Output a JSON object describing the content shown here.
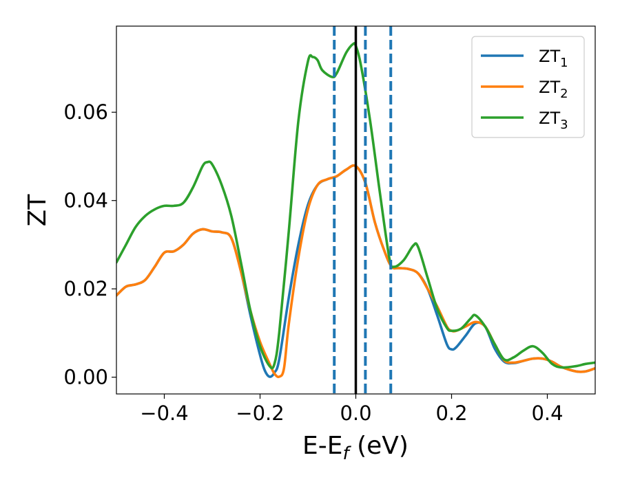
{
  "chart_data": {
    "type": "line",
    "xlabel": "E-E",
    "xlabel_sub": "f",
    "xlabel_unit": " (eV)",
    "ylabel": "ZT",
    "xlim": [
      -0.5,
      0.5
    ],
    "ylim": [
      -0.0038,
      0.0795
    ],
    "grid": false,
    "legend_position": "top-right",
    "x_ticks": [
      -0.4,
      -0.2,
      0.0,
      0.2,
      0.4
    ],
    "x_tick_labels": [
      "−0.4",
      "−0.2",
      "0.0",
      "0.2",
      "0.4"
    ],
    "y_ticks": [
      0.0,
      0.02,
      0.04,
      0.06
    ],
    "y_tick_labels": [
      "0.00",
      "0.02",
      "0.04",
      "0.06"
    ],
    "vertical_lines": [
      {
        "x": -0.045,
        "style": "dashed",
        "color": "#1f77b4"
      },
      {
        "x": 0.0,
        "style": "solid",
        "color": "#000000"
      },
      {
        "x": 0.02,
        "style": "dashed",
        "color": "#1f77b4"
      },
      {
        "x": 0.073,
        "style": "dashed",
        "color": "#1f77b4"
      }
    ],
    "series": [
      {
        "name": "ZT",
        "name_sub": "1",
        "color": "#1f77b4",
        "points": [
          [
            -0.5,
            0.0185
          ],
          [
            -0.48,
            0.0205
          ],
          [
            -0.46,
            0.021
          ],
          [
            -0.44,
            0.022
          ],
          [
            -0.42,
            0.025
          ],
          [
            -0.4,
            0.0282
          ],
          [
            -0.38,
            0.0285
          ],
          [
            -0.36,
            0.03
          ],
          [
            -0.34,
            0.0325
          ],
          [
            -0.32,
            0.0335
          ],
          [
            -0.3,
            0.033
          ],
          [
            -0.28,
            0.0328
          ],
          [
            -0.26,
            0.0315
          ],
          [
            -0.24,
            0.024
          ],
          [
            -0.22,
            0.014
          ],
          [
            -0.2,
            0.005
          ],
          [
            -0.19,
            0.0015
          ],
          [
            -0.18,
            0.0001
          ],
          [
            -0.17,
            0.001
          ],
          [
            -0.16,
            0.004
          ],
          [
            -0.14,
            0.018
          ],
          [
            -0.12,
            0.03
          ],
          [
            -0.1,
            0.039
          ],
          [
            -0.08,
            0.0435
          ],
          [
            -0.06,
            0.0448
          ],
          [
            -0.04,
            0.0455
          ],
          [
            -0.02,
            0.047
          ],
          [
            0.0,
            0.0478
          ],
          [
            0.02,
            0.044
          ],
          [
            0.04,
            0.035
          ],
          [
            0.06,
            0.0285
          ],
          [
            0.075,
            0.025
          ],
          [
            0.09,
            0.0247
          ],
          [
            0.11,
            0.0245
          ],
          [
            0.13,
            0.0235
          ],
          [
            0.15,
            0.02
          ],
          [
            0.17,
            0.014
          ],
          [
            0.19,
            0.0075
          ],
          [
            0.2,
            0.0063
          ],
          [
            0.21,
            0.0068
          ],
          [
            0.23,
            0.0095
          ],
          [
            0.25,
            0.0122
          ],
          [
            0.27,
            0.0115
          ],
          [
            0.29,
            0.0065
          ],
          [
            0.31,
            0.0035
          ],
          [
            0.33,
            0.0032
          ],
          [
            0.35,
            0.0037
          ],
          [
            0.37,
            0.0042
          ],
          [
            0.39,
            0.0042
          ],
          [
            0.41,
            0.0035
          ],
          [
            0.43,
            0.0023
          ],
          [
            0.46,
            0.0013
          ],
          [
            0.48,
            0.0013
          ],
          [
            0.5,
            0.002
          ]
        ]
      },
      {
        "name": "ZT",
        "name_sub": "2",
        "color": "#ff7f0e",
        "points": [
          [
            -0.5,
            0.0185
          ],
          [
            -0.48,
            0.0205
          ],
          [
            -0.46,
            0.021
          ],
          [
            -0.44,
            0.022
          ],
          [
            -0.42,
            0.025
          ],
          [
            -0.4,
            0.0282
          ],
          [
            -0.38,
            0.0285
          ],
          [
            -0.36,
            0.03
          ],
          [
            -0.34,
            0.0325
          ],
          [
            -0.32,
            0.0335
          ],
          [
            -0.3,
            0.033
          ],
          [
            -0.28,
            0.0328
          ],
          [
            -0.26,
            0.0315
          ],
          [
            -0.24,
            0.024
          ],
          [
            -0.22,
            0.015
          ],
          [
            -0.2,
            0.008
          ],
          [
            -0.18,
            0.003
          ],
          [
            -0.17,
            0.0008
          ],
          [
            -0.16,
            0.0001
          ],
          [
            -0.15,
            0.002
          ],
          [
            -0.14,
            0.012
          ],
          [
            -0.12,
            0.027
          ],
          [
            -0.1,
            0.038
          ],
          [
            -0.08,
            0.0435
          ],
          [
            -0.06,
            0.0448
          ],
          [
            -0.04,
            0.0455
          ],
          [
            -0.02,
            0.047
          ],
          [
            0.0,
            0.0478
          ],
          [
            0.02,
            0.044
          ],
          [
            0.04,
            0.035
          ],
          [
            0.06,
            0.0285
          ],
          [
            0.075,
            0.025
          ],
          [
            0.09,
            0.0247
          ],
          [
            0.11,
            0.0245
          ],
          [
            0.13,
            0.0235
          ],
          [
            0.15,
            0.02
          ],
          [
            0.17,
            0.016
          ],
          [
            0.19,
            0.0115
          ],
          [
            0.2,
            0.0105
          ],
          [
            0.21,
            0.0105
          ],
          [
            0.23,
            0.0115
          ],
          [
            0.25,
            0.0125
          ],
          [
            0.27,
            0.0115
          ],
          [
            0.29,
            0.0075
          ],
          [
            0.31,
            0.0038
          ],
          [
            0.33,
            0.0033
          ],
          [
            0.35,
            0.0037
          ],
          [
            0.37,
            0.0042
          ],
          [
            0.39,
            0.0042
          ],
          [
            0.41,
            0.0035
          ],
          [
            0.43,
            0.0023
          ],
          [
            0.46,
            0.0013
          ],
          [
            0.48,
            0.0013
          ],
          [
            0.5,
            0.002
          ]
        ]
      },
      {
        "name": "ZT",
        "name_sub": "3",
        "color": "#2ca02c",
        "points": [
          [
            -0.5,
            0.026
          ],
          [
            -0.48,
            0.03
          ],
          [
            -0.46,
            0.034
          ],
          [
            -0.44,
            0.0365
          ],
          [
            -0.42,
            0.038
          ],
          [
            -0.4,
            0.0388
          ],
          [
            -0.38,
            0.0388
          ],
          [
            -0.36,
            0.0395
          ],
          [
            -0.34,
            0.043
          ],
          [
            -0.32,
            0.0478
          ],
          [
            -0.31,
            0.0487
          ],
          [
            -0.3,
            0.0482
          ],
          [
            -0.28,
            0.0435
          ],
          [
            -0.26,
            0.0365
          ],
          [
            -0.24,
            0.026
          ],
          [
            -0.22,
            0.015
          ],
          [
            -0.2,
            0.007
          ],
          [
            -0.18,
            0.0025
          ],
          [
            -0.17,
            0.003
          ],
          [
            -0.16,
            0.01
          ],
          [
            -0.14,
            0.033
          ],
          [
            -0.12,
            0.058
          ],
          [
            -0.1,
            0.0715
          ],
          [
            -0.09,
            0.0725
          ],
          [
            -0.08,
            0.0718
          ],
          [
            -0.07,
            0.0695
          ],
          [
            -0.05,
            0.068
          ],
          [
            -0.04,
            0.0688
          ],
          [
            -0.02,
            0.0735
          ],
          [
            -0.005,
            0.0755
          ],
          [
            0.0,
            0.075
          ],
          [
            0.01,
            0.071
          ],
          [
            0.03,
            0.058
          ],
          [
            0.05,
            0.042
          ],
          [
            0.07,
            0.027
          ],
          [
            0.08,
            0.025
          ],
          [
            0.1,
            0.0265
          ],
          [
            0.12,
            0.0298
          ],
          [
            0.13,
            0.0295
          ],
          [
            0.15,
            0.0225
          ],
          [
            0.17,
            0.0155
          ],
          [
            0.19,
            0.0112
          ],
          [
            0.2,
            0.0105
          ],
          [
            0.22,
            0.011
          ],
          [
            0.24,
            0.0133
          ],
          [
            0.25,
            0.014
          ],
          [
            0.27,
            0.0115
          ],
          [
            0.29,
            0.0075
          ],
          [
            0.31,
            0.004
          ],
          [
            0.33,
            0.0045
          ],
          [
            0.35,
            0.006
          ],
          [
            0.37,
            0.007
          ],
          [
            0.39,
            0.0055
          ],
          [
            0.41,
            0.003
          ],
          [
            0.43,
            0.0022
          ],
          [
            0.46,
            0.0025
          ],
          [
            0.48,
            0.003
          ],
          [
            0.5,
            0.0033
          ]
        ]
      }
    ]
  }
}
